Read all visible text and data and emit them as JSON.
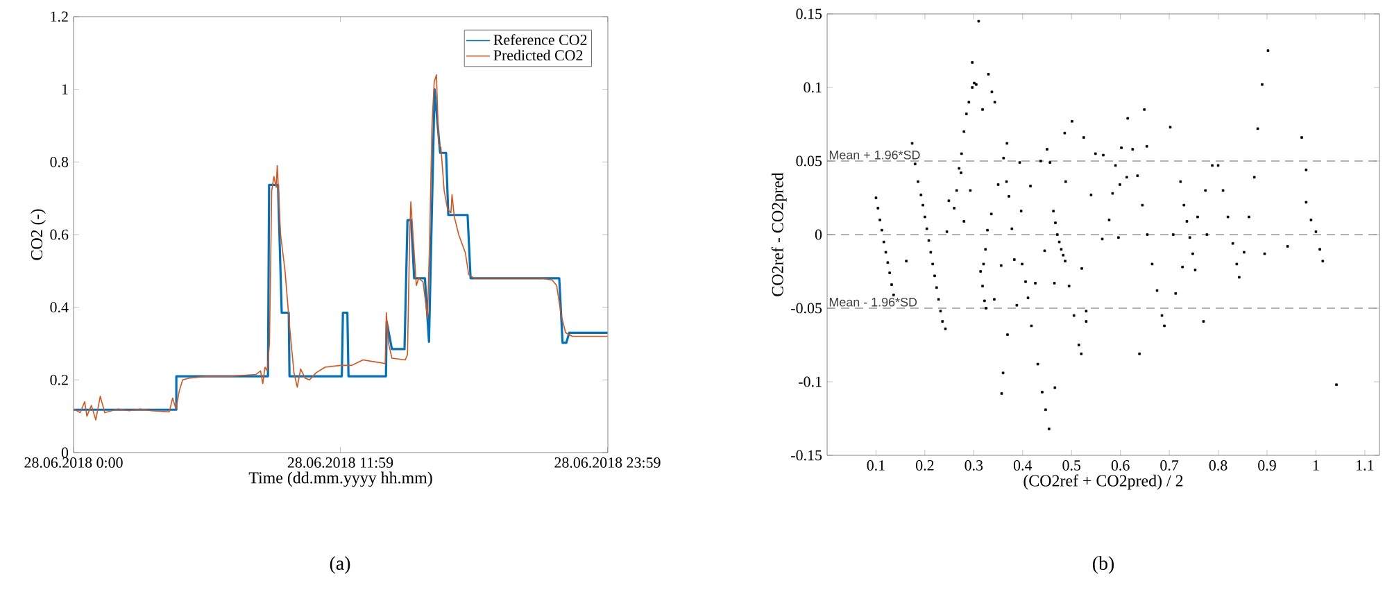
{
  "chart_data": [
    {
      "type": "line",
      "xlabel": "Time (dd.mm.yyyy hh.mm)",
      "ylabel": "CO2 (-)",
      "legend": "top right",
      "line_style": "solid",
      "xlim": [
        "2018-06-28T00:00",
        "2018-06-29T00:00"
      ],
      "xticks": [
        {
          "value": "2018-06-28T00:00",
          "label": "28.06.2018 0:00"
        },
        {
          "value": "2018-06-28T11:59",
          "label": "28.06.2018 11:59"
        },
        {
          "value": "2018-06-28T23:59",
          "label": "28.06.2018 23:59"
        }
      ],
      "ylim": [
        0,
        1.2
      ],
      "yticks": [
        0,
        0.2,
        0.4,
        0.6,
        0.8,
        1,
        1.2
      ],
      "annotations": [
        "(a)"
      ],
      "series": [
        {
          "name": "Reference CO2",
          "color": "#0072bd",
          "x": [
            "2018-06-28T00:00",
            "2018-06-28T04:37",
            "2018-06-28T04:37",
            "2018-06-28T08:44",
            "2018-06-28T08:47",
            "2018-06-28T09:11",
            "2018-06-28T09:21",
            "2018-06-28T09:40",
            "2018-06-28T09:42",
            "2018-06-28T12:03",
            "2018-06-28T12:06",
            "2018-06-28T12:18",
            "2018-06-28T12:21",
            "2018-06-28T14:02",
            "2018-06-28T14:04",
            "2018-06-28T14:18",
            "2018-06-28T14:52",
            "2018-06-28T15:00",
            "2018-06-28T15:10",
            "2018-06-28T15:18",
            "2018-06-28T15:47",
            "2018-06-28T15:58",
            "2018-06-28T16:13",
            "2018-06-28T16:28",
            "2018-06-28T16:44",
            "2018-06-28T16:50",
            "2018-06-28T17:42",
            "2018-06-28T17:50",
            "2018-06-28T21:49",
            "2018-06-28T21:58",
            "2018-06-28T22:08",
            "2018-06-28T22:16",
            "2018-06-28T23:59"
          ],
          "values": [
            0.118,
            0.118,
            0.21,
            0.21,
            0.737,
            0.737,
            0.385,
            0.385,
            0.21,
            0.21,
            0.385,
            0.385,
            0.21,
            0.21,
            0.36,
            0.285,
            0.285,
            0.64,
            0.64,
            0.48,
            0.48,
            0.305,
            1.0,
            0.825,
            0.825,
            0.654,
            0.654,
            0.48,
            0.48,
            0.302,
            0.302,
            0.33,
            0.33
          ]
        },
        {
          "name": "Predicted CO2",
          "color": "#d95319",
          "x": [
            "2018-06-28T00:00",
            "2018-06-28T00:18",
            "2018-06-28T00:30",
            "2018-06-28T00:36",
            "2018-06-28T00:48",
            "2018-06-28T01:00",
            "2018-06-28T01:12",
            "2018-06-28T01:24",
            "2018-06-28T02:00",
            "2018-06-28T02:30",
            "2018-06-28T03:00",
            "2018-06-28T03:30",
            "2018-06-28T04:18",
            "2018-06-28T04:27",
            "2018-06-28T04:36",
            "2018-06-28T04:45",
            "2018-06-28T04:54",
            "2018-06-28T05:12",
            "2018-06-28T06:00",
            "2018-06-28T07:00",
            "2018-06-28T08:12",
            "2018-06-28T08:24",
            "2018-06-28T08:30",
            "2018-06-28T08:36",
            "2018-06-28T08:42",
            "2018-06-28T08:48",
            "2018-06-28T08:54",
            "2018-06-28T09:00",
            "2018-06-28T09:06",
            "2018-06-28T09:09",
            "2018-06-28T09:18",
            "2018-06-28T09:30",
            "2018-06-28T09:42",
            "2018-06-28T09:54",
            "2018-06-28T10:03",
            "2018-06-28T10:12",
            "2018-06-28T10:24",
            "2018-06-28T10:36",
            "2018-06-28T10:54",
            "2018-06-28T11:18",
            "2018-06-28T12:00",
            "2018-06-28T12:30",
            "2018-06-28T13:00",
            "2018-06-28T13:30",
            "2018-06-28T14:00",
            "2018-06-28T14:03",
            "2018-06-28T14:09",
            "2018-06-28T14:18",
            "2018-06-28T14:54",
            "2018-06-28T15:00",
            "2018-06-28T15:06",
            "2018-06-28T15:09",
            "2018-06-28T15:18",
            "2018-06-28T15:24",
            "2018-06-28T15:30",
            "2018-06-28T15:42",
            "2018-06-28T15:54",
            "2018-06-28T16:00",
            "2018-06-28T16:06",
            "2018-06-28T16:12",
            "2018-06-28T16:18",
            "2018-06-28T16:24",
            "2018-06-28T16:30",
            "2018-06-28T16:39",
            "2018-06-28T16:48",
            "2018-06-28T16:57",
            "2018-06-28T17:00",
            "2018-06-28T17:06",
            "2018-06-28T17:18",
            "2018-06-28T17:36",
            "2018-06-28T17:45",
            "2018-06-28T18:00",
            "2018-06-28T19:00",
            "2018-06-28T20:00",
            "2018-06-28T21:00",
            "2018-06-28T21:30",
            "2018-06-28T21:42",
            "2018-06-28T21:54",
            "2018-06-28T22:06",
            "2018-06-28T22:24",
            "2018-06-28T23:00",
            "2018-06-28T23:59"
          ],
          "values": [
            0.12,
            0.11,
            0.14,
            0.1,
            0.13,
            0.09,
            0.155,
            0.11,
            0.12,
            0.115,
            0.12,
            0.115,
            0.112,
            0.15,
            0.12,
            0.17,
            0.2,
            0.205,
            0.21,
            0.21,
            0.215,
            0.225,
            0.19,
            0.235,
            0.225,
            0.3,
            0.72,
            0.76,
            0.73,
            0.79,
            0.6,
            0.5,
            0.35,
            0.22,
            0.18,
            0.23,
            0.205,
            0.2,
            0.22,
            0.235,
            0.24,
            0.24,
            0.255,
            0.25,
            0.245,
            0.385,
            0.3,
            0.26,
            0.255,
            0.27,
            0.6,
            0.69,
            0.55,
            0.46,
            0.48,
            0.47,
            0.37,
            0.6,
            0.9,
            1.02,
            1.04,
            0.85,
            0.84,
            0.72,
            0.67,
            0.66,
            0.71,
            0.65,
            0.6,
            0.55,
            0.49,
            0.48,
            0.48,
            0.48,
            0.48,
            0.475,
            0.46,
            0.38,
            0.33,
            0.32,
            0.32,
            0.32
          ]
        }
      ]
    },
    {
      "type": "scatter",
      "xlabel": "(CO2ref + CO2pred) / 2",
      "ylabel": "CO2ref - CO2pred",
      "marker": "square",
      "xlim": [
        0,
        1.13
      ],
      "xticks": [
        0.1,
        0.2,
        0.3,
        0.4,
        0.5,
        0.6,
        0.7,
        0.8,
        0.9,
        1,
        1.1
      ],
      "ylim": [
        -0.15,
        0.15
      ],
      "yticks": [
        -0.15,
        -0.1,
        -0.05,
        0,
        0.05,
        0.1,
        0.15
      ],
      "annotations": [
        "(b)"
      ],
      "ref_lines": [
        {
          "axis": "y",
          "value": 0.05,
          "label": "Mean + 1.96*SD",
          "color": "#666666",
          "line_style": "dashed"
        },
        {
          "axis": "y",
          "value": 0,
          "color": "#666666",
          "line_style": "dashed"
        },
        {
          "axis": "y",
          "value": -0.05,
          "label": "Mean - 1.96*SD",
          "color": "#666666",
          "line_style": "dashed"
        }
      ],
      "series": [
        {
          "color": "#000000",
          "x": [
            0.1,
            0.104,
            0.108,
            0.112,
            0.116,
            0.12,
            0.124,
            0.128,
            0.132,
            0.136,
            0.174,
            0.18,
            0.186,
            0.192,
            0.196,
            0.2,
            0.204,
            0.208,
            0.212,
            0.216,
            0.22,
            0.224,
            0.228,
            0.232,
            0.236,
            0.26,
            0.265,
            0.27,
            0.275,
            0.28,
            0.285,
            0.29,
            0.297,
            0.305,
            0.31,
            0.314,
            0.318,
            0.322,
            0.325,
            0.32,
            0.324,
            0.328,
            0.463,
            0.467,
            0.471,
            0.475,
            0.479,
            0.483,
            0.487,
            0.495,
            0.505,
            0.515,
            0.52,
            0.615,
            0.625,
            0.635,
            0.645,
            0.655,
            0.665,
            0.675,
            0.685,
            0.69,
            0.73,
            0.736,
            0.742,
            0.748,
            0.753,
            0.8,
            0.81,
            0.82,
            0.83,
            0.838,
            0.843,
            0.98,
            0.99,
            1.0,
            1.008,
            1.014,
            0.162,
            0.245,
            0.242,
            0.249,
            0.274,
            0.28,
            0.293,
            0.297,
            0.301,
            0.318,
            0.33,
            0.337,
            0.343,
            0.336,
            0.342,
            0.35,
            0.361,
            0.368,
            0.367,
            0.372,
            0.369,
            0.356,
            0.36,
            0.357,
            0.378,
            0.383,
            0.388,
            0.394,
            0.397,
            0.399,
            0.406,
            0.411,
            0.416,
            0.418,
            0.426,
            0.431,
            0.437,
            0.44,
            0.445,
            0.447,
            0.45,
            0.454,
            0.456,
            0.465,
            0.466,
            0.486,
            0.488,
            0.501,
            0.521,
            0.525,
            0.53,
            0.53,
            0.54,
            0.549,
            0.565,
            0.563,
            0.577,
            0.584,
            0.59,
            0.596,
            0.599,
            0.602,
            0.613,
            0.639,
            0.649,
            0.654,
            0.702,
            0.708,
            0.713,
            0.723,
            0.727,
            0.758,
            0.77,
            0.774,
            0.777,
            0.788,
            0.853,
            0.863,
            0.874,
            0.881,
            0.89,
            0.895,
            0.902,
            0.942,
            0.971,
            0.98,
            1.042
          ],
          "values": [
            0.025,
            0.018,
            0.01,
            0.003,
            -0.005,
            -0.012,
            -0.019,
            -0.026,
            -0.034,
            -0.041,
            0.062,
            0.048,
            0.036,
            0.027,
            0.02,
            0.012,
            0.004,
            -0.004,
            -0.012,
            -0.02,
            -0.028,
            -0.036,
            -0.044,
            -0.052,
            -0.059,
            0.018,
            0.03,
            0.045,
            0.055,
            0.07,
            0.082,
            0.09,
            0.1,
            0.102,
            0.145,
            -0.025,
            -0.035,
            -0.045,
            -0.05,
            -0.02,
            -0.01,
            0.003,
            0.016,
            0.008,
            0.0,
            -0.005,
            -0.01,
            -0.014,
            -0.018,
            -0.035,
            -0.055,
            -0.075,
            -0.081,
            0.079,
            0.058,
            0.04,
            0.02,
            0.0,
            -0.02,
            -0.038,
            -0.055,
            -0.062,
            0.02,
            0.009,
            -0.002,
            -0.013,
            -0.024,
            0.047,
            0.03,
            0.012,
            -0.006,
            -0.02,
            -0.029,
            0.022,
            0.01,
            0.002,
            -0.01,
            -0.018,
            -0.018,
            0.002,
            -0.064,
            0.023,
            0.042,
            0.009,
            0.03,
            0.117,
            0.103,
            0.085,
            0.109,
            0.097,
            0.09,
            0.014,
            -0.044,
            0.034,
            0.052,
            0.062,
            0.036,
            0.026,
            -0.068,
            -0.021,
            -0.094,
            -0.108,
            0.004,
            -0.017,
            -0.048,
            0.049,
            0.016,
            -0.02,
            -0.032,
            -0.043,
            0.033,
            -0.062,
            -0.033,
            -0.088,
            0.05,
            -0.107,
            -0.011,
            -0.119,
            0.058,
            -0.132,
            0.049,
            -0.033,
            -0.104,
            0.069,
            0.036,
            0.077,
            -0.023,
            0.066,
            -0.052,
            -0.059,
            0.027,
            0.055,
            0.054,
            -0.003,
            0.01,
            0.028,
            0.047,
            -0.002,
            0.034,
            0.059,
            0.039,
            -0.081,
            0.085,
            0.06,
            0.073,
            0.0,
            -0.04,
            0.036,
            -0.022,
            0.012,
            -0.059,
            0.03,
            0.0,
            0.047,
            -0.012,
            0.012,
            0.039,
            0.072,
            0.102,
            -0.013,
            0.125,
            -0.008,
            0.066,
            0.044,
            -0.102
          ]
        }
      ]
    }
  ]
}
